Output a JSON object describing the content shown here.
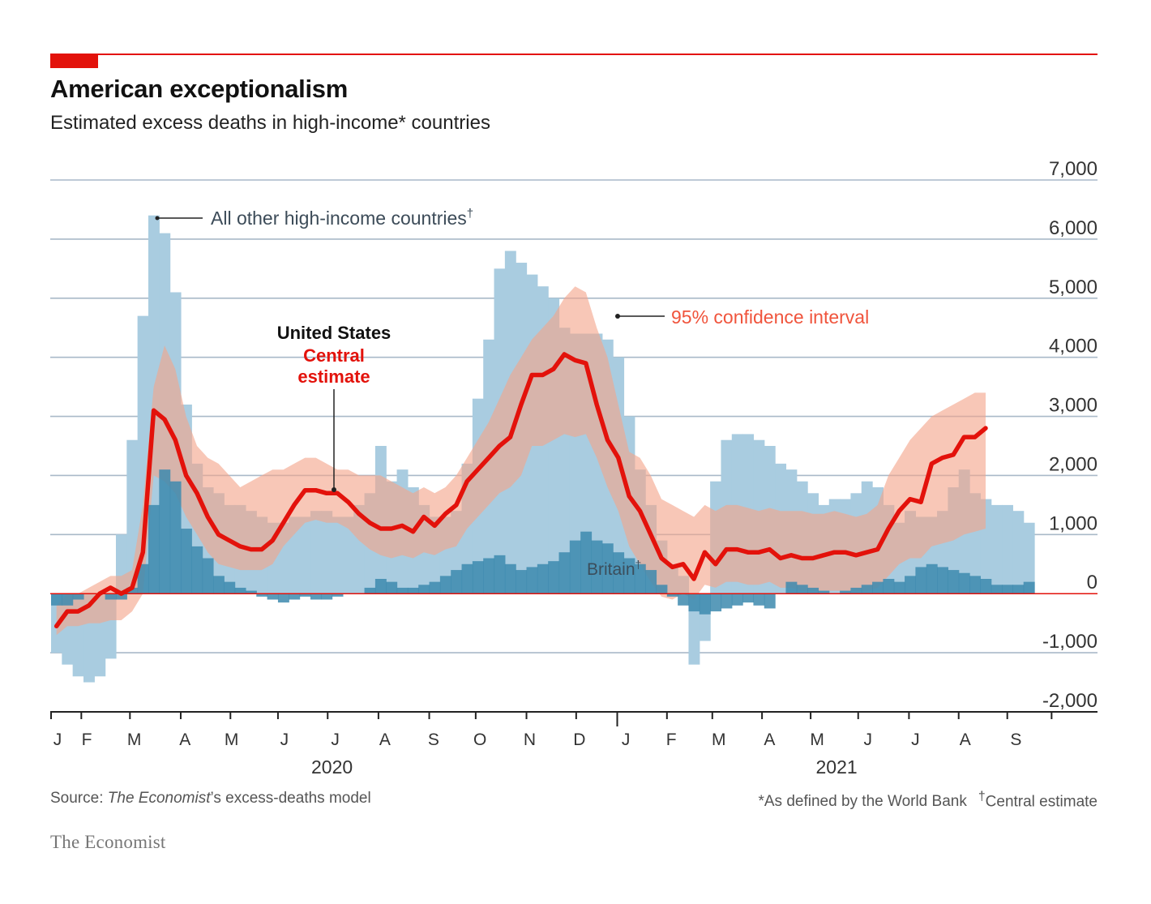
{
  "header": {
    "title": "American exceptionalism",
    "subtitle": "Estimated excess deaths in high-income* countries"
  },
  "footer": {
    "source_prefix": "Source: ",
    "source_italic": "The Economist",
    "source_suffix": "’s excess-deaths model",
    "note_world_bank": "*As defined by the World Bank",
    "note_dagger_mark": "†",
    "note_dagger_text": "Central estimate",
    "brand": "The Economist"
  },
  "colors": {
    "us_line": "#e3120b",
    "ci_band": "#f4a48a",
    "other_countries": "#a9cce0",
    "britain": "#3d8aae",
    "zero_line": "#e3120b",
    "grid": "#a9b9c8",
    "accent_orange": "#f0543c"
  },
  "chart_data": {
    "type": "area",
    "title": "American exceptionalism",
    "subtitle": "Estimated excess deaths in high-income* countries",
    "ylim": [
      -2000,
      7000
    ],
    "yticks": [
      7000,
      6000,
      5000,
      4000,
      3000,
      2000,
      1000,
      0,
      -1000,
      -2000
    ],
    "ytick_labels": [
      "7,000",
      "6,000",
      "5,000",
      "4,000",
      "3,000",
      "2,000",
      "1,000",
      "0",
      "-1,000",
      "-2,000"
    ],
    "x_unit": "weeks since start of 2020",
    "xlim": [
      0,
      91
    ],
    "month_ticks": [
      {
        "label": "J",
        "week": 0.6
      },
      {
        "label": "F",
        "week": 3.3
      },
      {
        "label": "M",
        "week": 7.7
      },
      {
        "label": "A",
        "week": 12.4
      },
      {
        "label": "M",
        "week": 16.7
      },
      {
        "label": "J",
        "week": 21.6
      },
      {
        "label": "J",
        "week": 26.3
      },
      {
        "label": "A",
        "week": 30.9
      },
      {
        "label": "S",
        "week": 35.4
      },
      {
        "label": "O",
        "week": 39.7
      },
      {
        "label": "N",
        "week": 44.3
      },
      {
        "label": "D",
        "week": 48.9
      },
      {
        "label": "J",
        "week": 53.2
      },
      {
        "label": "F",
        "week": 57.4
      },
      {
        "label": "M",
        "week": 61.8
      },
      {
        "label": "A",
        "week": 66.5
      },
      {
        "label": "M",
        "week": 70.9
      },
      {
        "label": "J",
        "week": 75.6
      },
      {
        "label": "J",
        "week": 80.0
      },
      {
        "label": "A",
        "week": 84.6
      },
      {
        "label": "S",
        "week": 89.3
      }
    ],
    "year_labels": [
      {
        "label": "2020",
        "week": 26.0
      },
      {
        "label": "2021",
        "week": 72.7
      }
    ],
    "series": [
      {
        "name": "All other high-income countries",
        "kind": "weekly bars",
        "values": [
          -1000,
          -1200,
          -1400,
          -1500,
          -1400,
          -1100,
          1000,
          2600,
          4700,
          6400,
          6100,
          5100,
          3200,
          2200,
          1800,
          1700,
          1500,
          1500,
          1400,
          1300,
          1200,
          1200,
          1300,
          1300,
          1400,
          1400,
          1300,
          1300,
          1500,
          1700,
          2500,
          1900,
          2100,
          1800,
          1500,
          1300,
          1300,
          1400,
          2200,
          3300,
          4300,
          5500,
          5800,
          5600,
          5400,
          5200,
          5000,
          4500,
          4400,
          4400,
          4400,
          4300,
          4000,
          3000,
          2100,
          1500,
          900,
          500,
          300,
          -1200,
          -800,
          1900,
          2600,
          2700,
          2700,
          2600,
          2500,
          2200,
          2100,
          1900,
          1700,
          1500,
          1600,
          1600,
          1700,
          1900,
          1800,
          1500,
          1200,
          1400,
          1300,
          1300,
          1400,
          1800,
          2100,
          1700,
          1600,
          1500,
          1500,
          1400,
          1200
        ]
      },
      {
        "name": "Britain",
        "kind": "weekly bars",
        "values": [
          -200,
          -200,
          -100,
          0,
          0,
          -100,
          -100,
          100,
          500,
          1500,
          2100,
          1900,
          1100,
          800,
          600,
          300,
          200,
          100,
          50,
          -50,
          -100,
          -150,
          -100,
          -50,
          -100,
          -100,
          -50,
          0,
          0,
          100,
          250,
          200,
          100,
          100,
          150,
          200,
          300,
          400,
          500,
          550,
          600,
          650,
          500,
          400,
          450,
          500,
          550,
          700,
          900,
          1050,
          900,
          850,
          700,
          600,
          500,
          400,
          150,
          -50,
          -200,
          -300,
          -350,
          -300,
          -250,
          -200,
          -150,
          -200,
          -250,
          0,
          200,
          150,
          100,
          50,
          0,
          50,
          100,
          150,
          200,
          250,
          200,
          300,
          450,
          500,
          450,
          400,
          350,
          300,
          250,
          150,
          150,
          150,
          200
        ]
      },
      {
        "name": "United States central estimate",
        "kind": "line",
        "values": [
          -550,
          -300,
          -300,
          -200,
          0,
          100,
          0,
          100,
          700,
          3100,
          2950,
          2600,
          2000,
          1700,
          1300,
          1000,
          900,
          800,
          750,
          750,
          900,
          1200,
          1500,
          1750,
          1750,
          1700,
          1700,
          1550,
          1350,
          1200,
          1100,
          1100,
          1150,
          1050,
          1300,
          1150,
          1350,
          1500,
          1900,
          2100,
          2300,
          2500,
          2650,
          3200,
          3700,
          3700,
          3800,
          4050,
          3950,
          3900,
          3200,
          2600,
          2300,
          1650,
          1400,
          1000,
          600,
          450,
          500,
          250,
          700,
          500,
          750,
          750,
          700,
          700,
          750,
          600,
          650,
          600,
          600,
          650,
          700,
          700,
          650,
          700,
          750,
          1100,
          1400,
          1600,
          1550,
          2200,
          2300,
          2350,
          2650,
          2650,
          2800
        ]
      },
      {
        "name": "95% confidence interval",
        "kind": "band",
        "upper": [
          -200,
          0,
          0,
          100,
          200,
          300,
          300,
          400,
          1500,
          3500,
          4200,
          3800,
          3000,
          2500,
          2300,
          2200,
          2000,
          1800,
          1900,
          2000,
          2100,
          2100,
          2200,
          2300,
          2300,
          2200,
          2100,
          2100,
          2000,
          2000,
          2000,
          1900,
          1800,
          1700,
          1800,
          1700,
          1800,
          2000,
          2300,
          2600,
          2900,
          3300,
          3700,
          4000,
          4300,
          4500,
          4700,
          5000,
          5200,
          5100,
          4500,
          4000,
          3200,
          2400,
          2300,
          2000,
          1600,
          1500,
          1400,
          1300,
          1500,
          1400,
          1500,
          1500,
          1450,
          1400,
          1450,
          1400,
          1400,
          1400,
          1350,
          1350,
          1400,
          1350,
          1300,
          1350,
          1500,
          2000,
          2300,
          2600,
          2800,
          3000,
          3100,
          3200,
          3300,
          3400,
          3400
        ],
        "lower": [
          -700,
          -550,
          -550,
          -500,
          -500,
          -450,
          -450,
          -300,
          0,
          2000,
          1900,
          1700,
          1300,
          1000,
          700,
          500,
          450,
          400,
          400,
          400,
          500,
          800,
          1000,
          1200,
          1250,
          1200,
          1200,
          1100,
          900,
          750,
          650,
          600,
          650,
          600,
          700,
          650,
          750,
          800,
          1100,
          1300,
          1500,
          1700,
          1800,
          2000,
          2500,
          2500,
          2600,
          2700,
          2650,
          2700,
          2300,
          1800,
          1400,
          800,
          500,
          200,
          -50,
          -100,
          0,
          -100,
          150,
          100,
          200,
          200,
          150,
          150,
          200,
          100,
          100,
          50,
          50,
          50,
          50,
          50,
          50,
          50,
          100,
          300,
          500,
          600,
          600,
          800,
          850,
          900,
          1000,
          1050,
          1100
        ]
      }
    ],
    "annotations": [
      {
        "text": "All other high-income countries",
        "dagger": "†"
      },
      {
        "text": "United States",
        "line2": "Central",
        "line3": "estimate"
      },
      {
        "text": "95% confidence interval"
      },
      {
        "text": "Britain",
        "dagger": "†"
      }
    ]
  }
}
